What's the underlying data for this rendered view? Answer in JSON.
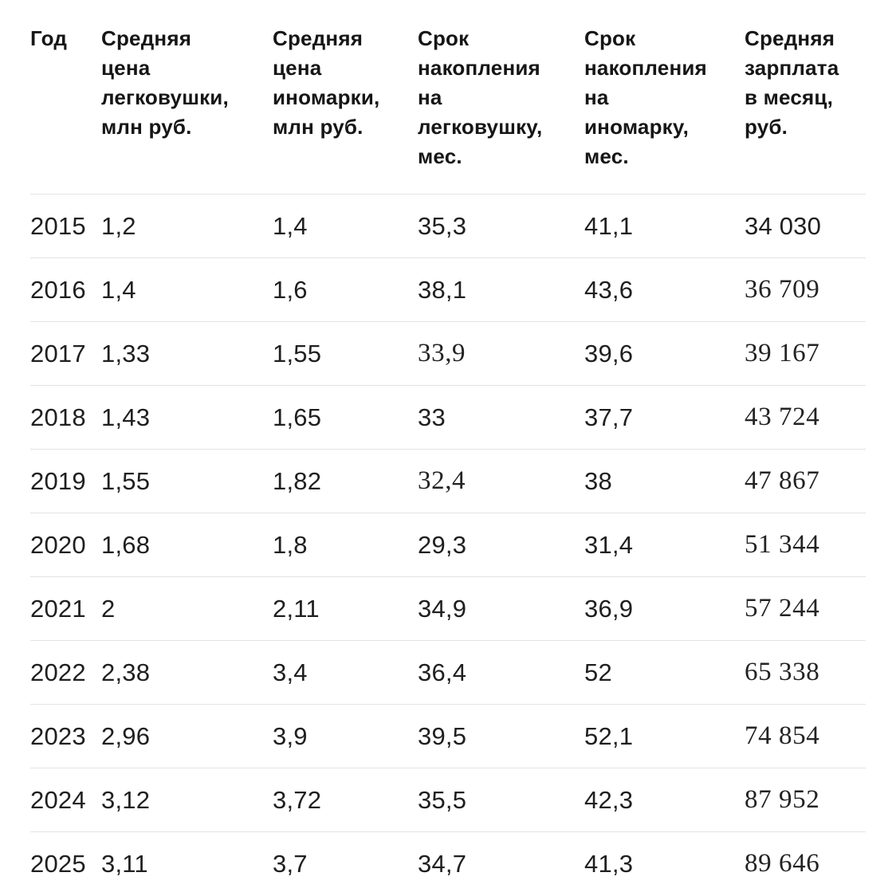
{
  "colors": {
    "background": "#ffffff",
    "header_text": "#161616",
    "body_text": "#1f1f1f",
    "divider": "#e3e3e3"
  },
  "table": {
    "columns": [
      {
        "key": "year",
        "label": "Год"
      },
      {
        "key": "car_price",
        "label": "Средняя\nцена\nлегковушки,\nмлн руб."
      },
      {
        "key": "foreign_price",
        "label": "Средняя\nцена\nиномарки,\nмлн руб."
      },
      {
        "key": "term_car",
        "label": "Срок\nнакопления\nна\nлегковушку,\nмес."
      },
      {
        "key": "term_foreign",
        "label": "Срок\nнакопления\nна\nиномарку,\nмес."
      },
      {
        "key": "salary",
        "label": "Средняя\nзарплата\nв месяц,\nруб."
      }
    ],
    "rows": [
      {
        "year": "2015",
        "car_price": "1,2",
        "foreign_price": "1,4",
        "term_car": "35,3",
        "term_foreign": "41,1",
        "salary": "34 030",
        "serif_cells": []
      },
      {
        "year": "2016",
        "car_price": "1,4",
        "foreign_price": "1,6",
        "term_car": "38,1",
        "term_foreign": "43,6",
        "salary": "36 709",
        "serif_cells": [
          "salary"
        ]
      },
      {
        "year": "2017",
        "car_price": "1,33",
        "foreign_price": "1,55",
        "term_car": "33,9",
        "term_foreign": "39,6",
        "salary": "39 167",
        "serif_cells": [
          "term_car",
          "salary"
        ]
      },
      {
        "year": "2018",
        "car_price": "1,43",
        "foreign_price": "1,65",
        "term_car": "33",
        "term_foreign": "37,7",
        "salary": "43 724",
        "serif_cells": [
          "salary"
        ]
      },
      {
        "year": "2019",
        "car_price": "1,55",
        "foreign_price": "1,82",
        "term_car": "32,4",
        "term_foreign": "38",
        "salary": "47 867",
        "serif_cells": [
          "term_car",
          "salary"
        ]
      },
      {
        "year": "2020",
        "car_price": "1,68",
        "foreign_price": "1,8",
        "term_car": "29,3",
        "term_foreign": "31,4",
        "salary": "51 344",
        "serif_cells": [
          "salary"
        ]
      },
      {
        "year": "2021",
        "car_price": "2",
        "foreign_price": "2,11",
        "term_car": "34,9",
        "term_foreign": "36,9",
        "salary": "57 244",
        "serif_cells": [
          "salary"
        ]
      },
      {
        "year": "2022",
        "car_price": "2,38",
        "foreign_price": "3,4",
        "term_car": "36,4",
        "term_foreign": "52",
        "salary": "65 338",
        "serif_cells": [
          "salary"
        ]
      },
      {
        "year": "2023",
        "car_price": "2,96",
        "foreign_price": "3,9",
        "term_car": "39,5",
        "term_foreign": "52,1",
        "salary": "74 854",
        "serif_cells": [
          "salary"
        ]
      },
      {
        "year": "2024",
        "car_price": "3,12",
        "foreign_price": "3,72",
        "term_car": "35,5",
        "term_foreign": "42,3",
        "salary": "87 952",
        "serif_cells": [
          "salary"
        ]
      },
      {
        "year": "2025",
        "car_price": "3,11",
        "foreign_price": "3,7",
        "term_car": "34,7",
        "term_foreign": "41,3",
        "salary": "89 646",
        "serif_cells": [
          "salary"
        ]
      }
    ]
  },
  "chart_data": {
    "type": "table",
    "title": "",
    "columns": [
      "Год",
      "Средняя цена легковушки, млн руб.",
      "Средняя цена иномарки, млн руб.",
      "Срок накопления на легковушку, мес.",
      "Срок накопления на иномарку, мес.",
      "Средняя зарплата в месяц, руб."
    ],
    "rows": [
      [
        2015,
        1.2,
        1.4,
        35.3,
        41.1,
        34030
      ],
      [
        2016,
        1.4,
        1.6,
        38.1,
        43.6,
        36709
      ],
      [
        2017,
        1.33,
        1.55,
        33.9,
        39.6,
        39167
      ],
      [
        2018,
        1.43,
        1.65,
        33,
        37.7,
        43724
      ],
      [
        2019,
        1.55,
        1.82,
        32.4,
        38,
        47867
      ],
      [
        2020,
        1.68,
        1.8,
        29.3,
        31.4,
        51344
      ],
      [
        2021,
        2,
        2.11,
        34.9,
        36.9,
        57244
      ],
      [
        2022,
        2.38,
        3.4,
        36.4,
        52,
        65338
      ],
      [
        2023,
        2.96,
        3.9,
        39.5,
        52.1,
        74854
      ],
      [
        2024,
        3.12,
        3.72,
        35.5,
        42.3,
        87952
      ],
      [
        2025,
        3.11,
        3.7,
        34.7,
        41.3,
        89646
      ]
    ]
  }
}
